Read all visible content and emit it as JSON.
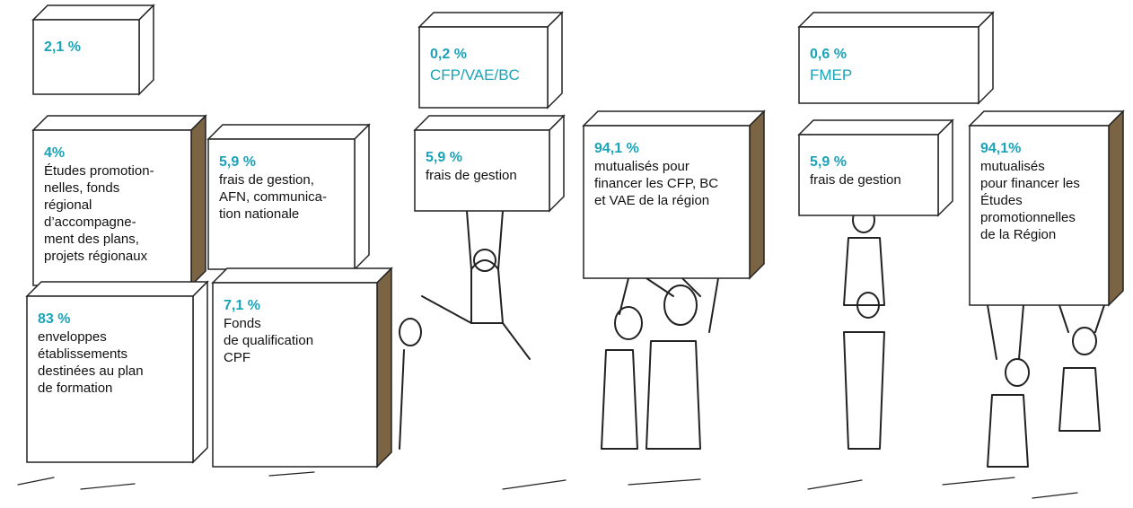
{
  "groups": [
    {
      "boxes": [
        {
          "percent": "2,1 %"
        },
        {
          "percent": "4%",
          "label": [
            "Études promotion-",
            "nelles, fonds",
            "régional",
            "d’accompagne-",
            "ment des plans,",
            "projets régionaux"
          ]
        },
        {
          "percent": "5,9 %",
          "label": [
            "frais de gestion,",
            "AFN, communica-",
            "tion nationale"
          ]
        },
        {
          "percent": "83 %",
          "label": [
            "enveloppes",
            "établissements",
            "destinées au plan",
            "de formation"
          ]
        },
        {
          "percent": "7,1 %",
          "label": [
            "Fonds",
            "de qualification",
            "CPF"
          ]
        }
      ]
    },
    {
      "boxes": [
        {
          "percent": "0,2 %",
          "tag": "CFP/VAE/BC"
        },
        {
          "percent": "5,9 %",
          "label": [
            "frais de gestion"
          ]
        },
        {
          "percent": "94,1 %",
          "label": [
            "mutualisés pour",
            "financer les CFP, BC",
            "et VAE de la région"
          ]
        }
      ]
    },
    {
      "boxes": [
        {
          "percent": "0,6 %",
          "tag": "FMEP"
        },
        {
          "percent": "5,9 %",
          "label": [
            "frais de gestion"
          ]
        },
        {
          "percent": "94,1%",
          "label": [
            "mutualisés",
            "pour financer les",
            "Études",
            "promotionnelles",
            "de la Région"
          ]
        }
      ]
    }
  ]
}
